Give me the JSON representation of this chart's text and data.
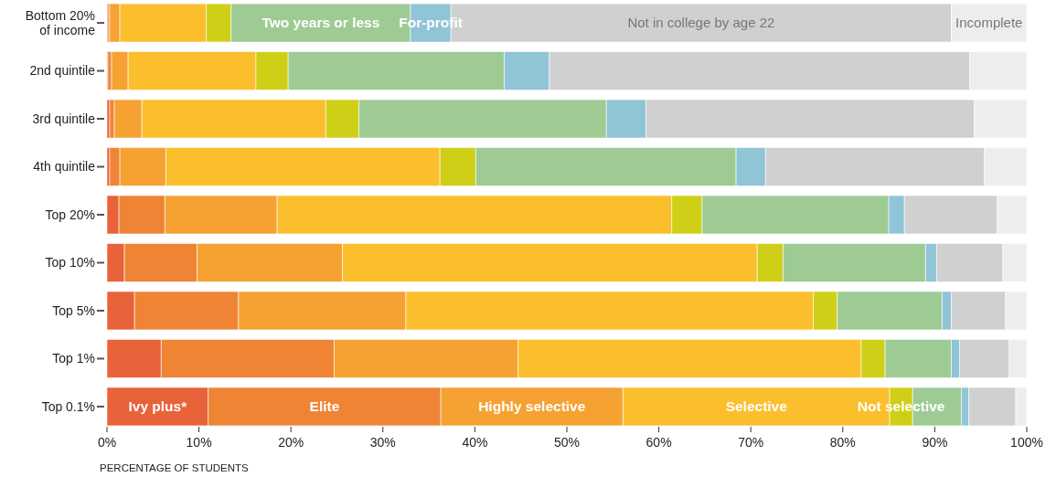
{
  "chart_data": {
    "type": "bar",
    "orientation": "horizontal",
    "stacked": true,
    "xlabel": "PERCENTAGE OF STUDENTS",
    "categories": [
      "Bottom 20% of income",
      "2nd quintile",
      "3rd quintile",
      "4th quintile",
      "Top 20%",
      "Top 10%",
      "Top 5%",
      "Top 1%",
      "Top 0.1%"
    ],
    "series": [
      {
        "name": "Ivy plus*",
        "color": "#e8623a",
        "values": [
          0.1,
          0.1,
          0.3,
          0.3,
          1.3,
          1.9,
          3.0,
          5.9,
          11.0
        ]
      },
      {
        "name": "Elite",
        "color": "#ef8435",
        "values": [
          0.2,
          0.4,
          0.5,
          1.1,
          5.0,
          7.9,
          11.3,
          18.8,
          25.3
        ]
      },
      {
        "name": "Highly selective",
        "color": "#f5a233",
        "values": [
          1.1,
          1.8,
          3.0,
          5.0,
          12.2,
          15.8,
          18.2,
          20.0,
          19.8
        ]
      },
      {
        "name": "Selective",
        "color": "#fbbf2e",
        "values": [
          9.4,
          13.9,
          20.0,
          29.8,
          42.9,
          45.1,
          44.3,
          37.3,
          29.0
        ]
      },
      {
        "name": "Not selective",
        "color": "#d0cf18",
        "values": [
          2.7,
          3.5,
          3.6,
          3.9,
          3.3,
          2.8,
          2.6,
          2.6,
          2.5
        ]
      },
      {
        "name": "Two years or less",
        "color": "#9ecb94",
        "values": [
          19.5,
          23.5,
          26.9,
          28.3,
          20.3,
          15.5,
          11.4,
          7.2,
          5.3
        ]
      },
      {
        "name": "For-profit",
        "color": "#90c4d7",
        "values": [
          4.4,
          4.9,
          4.3,
          3.2,
          1.7,
          1.2,
          1.0,
          0.9,
          0.8
        ]
      },
      {
        "name": "Not in college by age 22",
        "color": "#d0d0d0",
        "values": [
          54.4,
          45.7,
          35.7,
          23.8,
          10.1,
          7.2,
          5.9,
          5.4,
          5.1
        ]
      },
      {
        "name": "Incomplete",
        "color": "#eceeee",
        "values": [
          8.2,
          6.2,
          5.7,
          4.6,
          3.2,
          2.6,
          2.3,
          1.9,
          1.2
        ]
      }
    ],
    "xlim": [
      0,
      100
    ],
    "xticks": [
      {
        "value": 0,
        "label": "0%"
      },
      {
        "value": 10,
        "label": "10%"
      },
      {
        "value": 20,
        "label": "20%"
      },
      {
        "value": 30,
        "label": "30%"
      },
      {
        "value": 40,
        "label": "40%"
      },
      {
        "value": 50,
        "label": "50%"
      },
      {
        "value": 60,
        "label": "60%"
      },
      {
        "value": 70,
        "label": "70%"
      },
      {
        "value": 80,
        "label": "80%"
      },
      {
        "value": 90,
        "label": "90%"
      },
      {
        "value": 100,
        "label": "100%"
      }
    ],
    "grid": false
  }
}
